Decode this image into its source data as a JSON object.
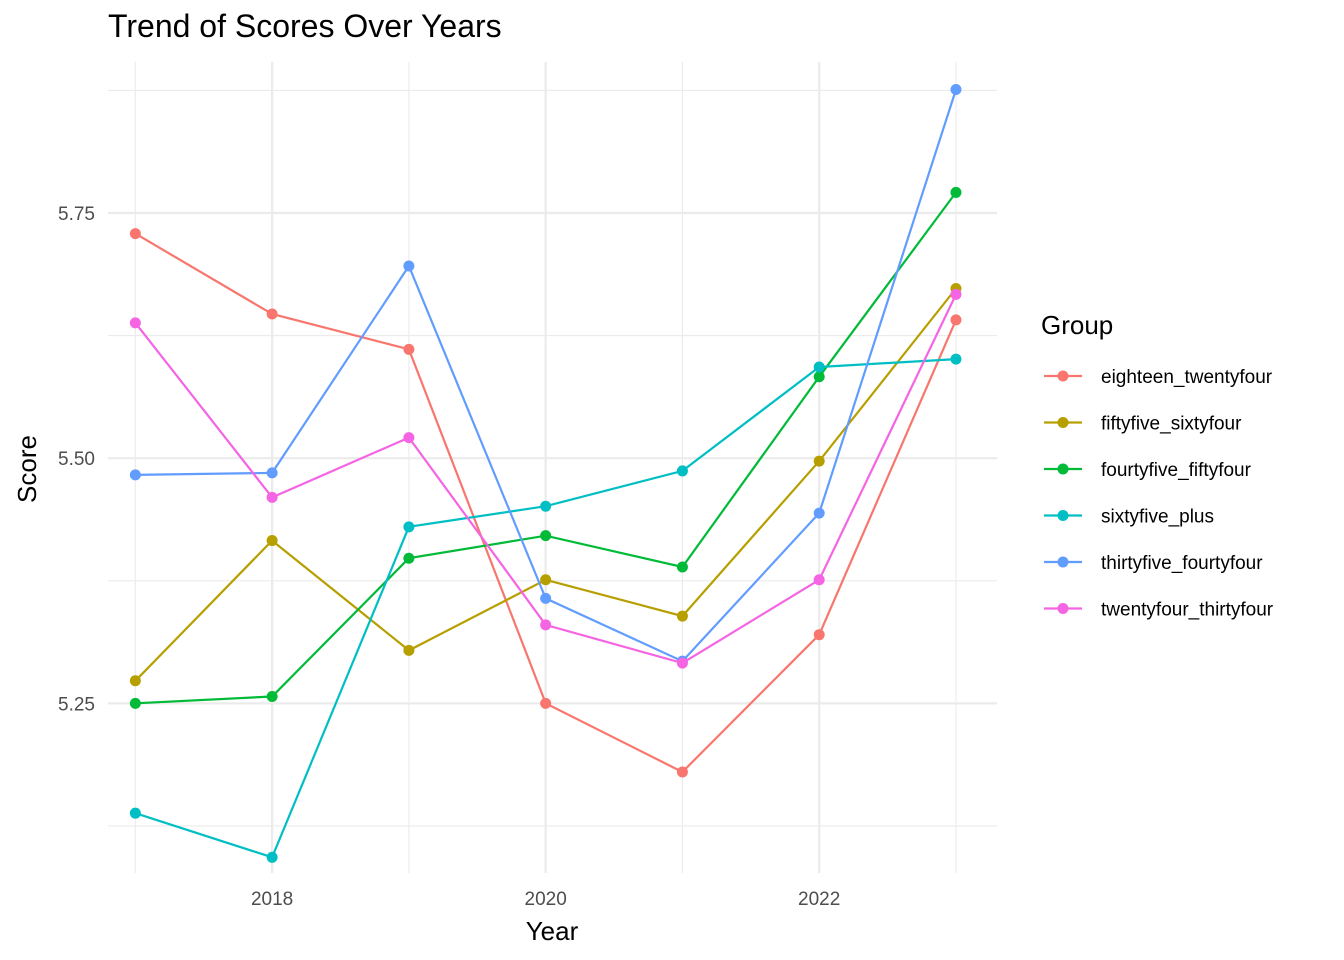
{
  "chart_data": {
    "type": "line",
    "title": "Trend of Scores Over Years",
    "xlabel": "Year",
    "ylabel": "Score",
    "x": [
      2017,
      2018,
      2019,
      2020,
      2021,
      2022,
      2023
    ],
    "xticks": [
      "2018",
      "2020",
      "2022"
    ],
    "yticks": [
      "5.25",
      "5.50",
      "5.75"
    ],
    "xlim": [
      2016.8,
      2023.3
    ],
    "ylim": [
      5.077,
      5.904
    ],
    "grid": true,
    "legend": {
      "title": "Group",
      "position": "right"
    },
    "series": [
      {
        "name": "eighteen_twentyfour",
        "color": "#F8766D",
        "values": [
          5.729,
          5.647,
          5.611,
          5.25,
          5.18,
          5.32,
          5.641
        ]
      },
      {
        "name": "fiftyfive_sixtyfour",
        "color": "#B79F00",
        "values": [
          5.273,
          5.416,
          5.304,
          5.376,
          5.339,
          5.497,
          5.673
        ]
      },
      {
        "name": "fourtyfive_fiftyfour",
        "color": "#00BA38",
        "values": [
          5.25,
          5.257,
          5.398,
          5.421,
          5.389,
          5.583,
          5.771
        ]
      },
      {
        "name": "sixtyfive_plus",
        "color": "#00BFC4",
        "values": [
          5.138,
          5.093,
          5.43,
          5.451,
          5.487,
          5.593,
          5.601
        ]
      },
      {
        "name": "thirtyfive_fourtyfour",
        "color": "#619CFF",
        "values": [
          5.483,
          5.485,
          5.696,
          5.357,
          5.293,
          5.444,
          5.876
        ]
      },
      {
        "name": "twentyfour_thirtyfour",
        "color": "#F564E3",
        "values": [
          5.638,
          5.46,
          5.521,
          5.33,
          5.291,
          5.376,
          5.667
        ]
      }
    ]
  }
}
